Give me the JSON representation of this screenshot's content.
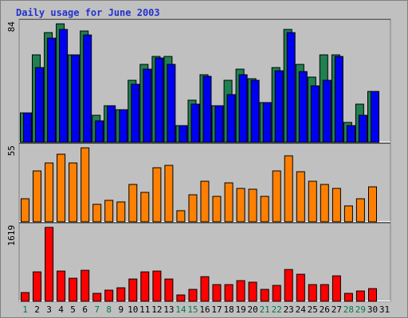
{
  "title": "Daily usage for June 2003",
  "colors": {
    "visits": "#208050",
    "pages": "#0000f0",
    "sites": "#ff8000",
    "kbytes": "#ff0000",
    "weekday_label": "#000000",
    "weekend_label": "#007a46"
  },
  "chart_data": {
    "type": "bar",
    "title": "Daily usage for June 2003",
    "categories": [
      "1",
      "2",
      "3",
      "4",
      "5",
      "6",
      "7",
      "8",
      "9",
      "10",
      "11",
      "12",
      "13",
      "14",
      "15",
      "16",
      "17",
      "18",
      "19",
      "20",
      "21",
      "22",
      "23",
      "24",
      "25",
      "26",
      "27",
      "28",
      "29",
      "30",
      "31"
    ],
    "weekend_days": [
      "1",
      "7",
      "8",
      "14",
      "15",
      "21",
      "22",
      "28",
      "29"
    ],
    "panels": [
      {
        "max_label": "84",
        "ylim": [
          0,
          84
        ],
        "series": [
          {
            "color": "#208050",
            "values": [
              21,
              62,
              78,
              84,
              62,
              79,
              19,
              26,
              23,
              44,
              55,
              61,
              61,
              12,
              30,
              48,
              26,
              44,
              52,
              45,
              28,
              53,
              80,
              55,
              46,
              62,
              62,
              14,
              27,
              36,
              0
            ]
          },
          {
            "color": "#0000f0",
            "values": [
              21,
              53,
              74,
              80,
              62,
              76,
              15,
              26,
              23,
              41,
              52,
              60,
              55,
              12,
              27,
              47,
              26,
              34,
              48,
              44,
              28,
              51,
              78,
              50,
              40,
              44,
              61,
              12,
              19,
              36,
              0
            ]
          }
        ]
      },
      {
        "max_label": "55",
        "ylim": [
          0,
          55
        ],
        "series": [
          {
            "color": "#ff8000",
            "values": [
              17,
              38,
              44,
              50,
              44,
              55,
              13,
              16,
              15,
              28,
              22,
              40,
              42,
              8,
              20,
              30,
              19,
              29,
              25,
              24,
              19,
              38,
              49,
              37,
              30,
              28,
              25,
              12,
              17,
              26,
              0
            ]
          }
        ]
      },
      {
        "max_label": "1619",
        "ylim": [
          0,
          1619
        ],
        "series": [
          {
            "color": "#ff0000",
            "values": [
              200,
              640,
              1619,
              670,
              510,
              680,
              180,
              240,
              300,
              490,
              640,
              670,
              490,
              140,
              260,
              540,
              360,
              360,
              450,
              410,
              260,
              340,
              690,
              600,
              370,
              360,
              560,
              170,
              220,
              280,
              0
            ]
          }
        ]
      }
    ]
  }
}
